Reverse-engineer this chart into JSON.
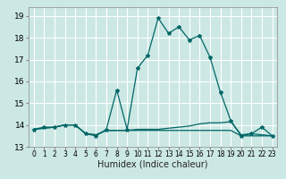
{
  "title": "",
  "xlabel": "Humidex (Indice chaleur)",
  "background_color": "#cce8e4",
  "grid_color": "#ffffff",
  "line_color": "#006666",
  "xlim": [
    -0.5,
    23.5
  ],
  "ylim": [
    13.0,
    19.4
  ],
  "yticks": [
    13,
    14,
    15,
    16,
    17,
    18,
    19
  ],
  "xticks": [
    0,
    1,
    2,
    3,
    4,
    5,
    6,
    7,
    8,
    9,
    10,
    11,
    12,
    13,
    14,
    15,
    16,
    17,
    18,
    19,
    20,
    21,
    22,
    23
  ],
  "series1": [
    13.8,
    13.9,
    13.9,
    14.0,
    14.0,
    13.6,
    13.5,
    13.8,
    15.6,
    13.8,
    16.6,
    17.2,
    18.9,
    18.2,
    18.5,
    17.9,
    18.1,
    17.1,
    15.5,
    14.2,
    13.5,
    13.6,
    13.9,
    13.5
  ],
  "series2": [
    13.8,
    13.85,
    13.9,
    14.0,
    14.0,
    13.6,
    13.55,
    13.75,
    13.75,
    13.75,
    13.8,
    13.8,
    13.8,
    13.85,
    13.9,
    13.95,
    14.05,
    14.1,
    14.1,
    14.15,
    13.55,
    13.6,
    13.55,
    13.5
  ],
  "series3": [
    13.8,
    13.85,
    13.9,
    14.0,
    14.0,
    13.6,
    13.55,
    13.75,
    13.75,
    13.75,
    13.75,
    13.75,
    13.75,
    13.75,
    13.75,
    13.75,
    13.75,
    13.75,
    13.75,
    13.75,
    13.5,
    13.5,
    13.5,
    13.5
  ],
  "tick_fontsize": 6,
  "xlabel_fontsize": 7,
  "marker_size": 3
}
